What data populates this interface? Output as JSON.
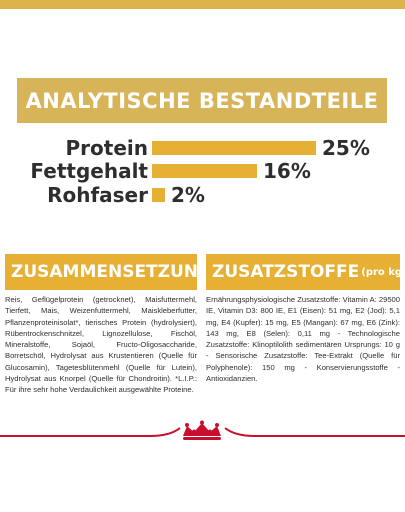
{
  "analytics": {
    "title": "ANALYTISCHE BESTANDTEILE",
    "rows": [
      {
        "label": "Protein",
        "value": "25%",
        "fraction": 0.25
      },
      {
        "label": "Fettgehalt",
        "value": "16%",
        "fraction": 0.16
      },
      {
        "label": "Rohfaser",
        "value": "2%",
        "fraction": 0.02
      }
    ]
  },
  "composition": {
    "title": "ZUSAMMENSETZUNG",
    "text": "Reis, Geflügelprotein (getrocknet), Maisfuttermehl, Tierfett, Mais, Weizenfuttermehl, Maiskleberfutter, Pflanzenproteinisolat*, tierisches Protein (hydrolysiert), Rübentrockenschnitzel, Lignozellulose, Fischöl, Mineralstoffe, Sojaöl, Fructo-Oligosaccharide, Borretschöl, Hydrolysat aus Krustentieren (Quelle für Glucosamin), Tagetesblütenmehl (Quelle für Lutein), Hydrolysat aus Knorpel (Quelle für Chondroitin). *L.I.P.: Für ihre sehr hohe Verdaulichkeit ausgewählte Proteine."
  },
  "additives": {
    "title": "ZUSATZSTOFFE",
    "title_suffix": "(pro kg)",
    "text": "Ernährungsphysiologische Zusatzstoffe: Vitamin A: 29500 IE, Vitamin D3: 800 IE, E1 (Eisen): 51 mg, E2 (Jod): 5,1 mg, E4 (Kupfer): 15 mg, E5 (Mangan): 67 mg, E6 (Zink): 143 mg, E8 (Selen): 0,11 mg - Technologische Zusatzstoffe: Klinoptilolith sedimentären Ursprungs: 10 g - Sensorische Zusatzstoffe: Tee-Extrakt (Quelle für Polyphenole): 150 mg - Konservierungsstoffe - Antioxidanzien."
  },
  "colors": {
    "gold": "#e6b035",
    "banner": "#d8b458",
    "brand_red": "#c8102e"
  },
  "footer": {
    "logo_icon": "royal-canin-crown-logo-icon"
  }
}
